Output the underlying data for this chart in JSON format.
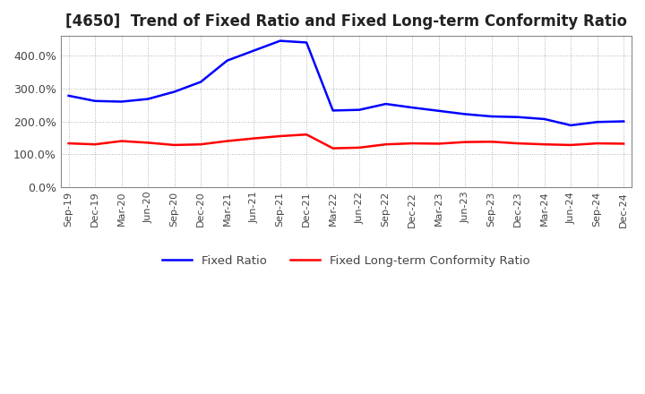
{
  "title": "[4650]  Trend of Fixed Ratio and Fixed Long-term Conformity Ratio",
  "x_labels": [
    "Sep-19",
    "Dec-19",
    "Mar-20",
    "Jun-20",
    "Sep-20",
    "Dec-20",
    "Mar-21",
    "Jun-21",
    "Sep-21",
    "Dec-21",
    "Mar-22",
    "Jun-22",
    "Sep-22",
    "Dec-22",
    "Mar-23",
    "Jun-23",
    "Sep-23",
    "Dec-23",
    "Mar-24",
    "Jun-24",
    "Sep-24",
    "Dec-24"
  ],
  "fixed_ratio": [
    278,
    262,
    260,
    268,
    290,
    320,
    385,
    415,
    445,
    440,
    233,
    235,
    253,
    242,
    232,
    222,
    215,
    213,
    207,
    188,
    198,
    200
  ],
  "fixed_lt_ratio": [
    133,
    130,
    140,
    135,
    128,
    130,
    140,
    148,
    155,
    160,
    118,
    120,
    130,
    133,
    132,
    137,
    138,
    133,
    130,
    128,
    133,
    132
  ],
  "fixed_ratio_color": "#0000FF",
  "fixed_lt_ratio_color": "#FF0000",
  "ylim": [
    0,
    460
  ],
  "yticks": [
    0,
    100,
    200,
    300,
    400
  ],
  "background_color": "#FFFFFF",
  "grid_color": "#AAAAAA",
  "title_fontsize": 12,
  "legend_labels": [
    "Fixed Ratio",
    "Fixed Long-term Conformity Ratio"
  ]
}
